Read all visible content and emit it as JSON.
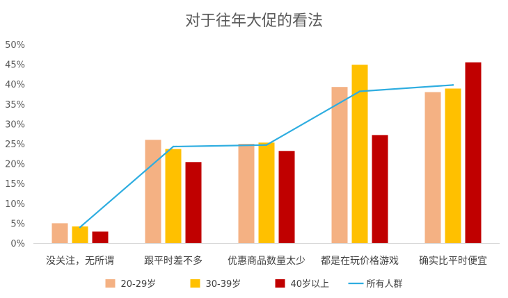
{
  "chart_data": {
    "type": "bar",
    "title": "对于往年大促的看法",
    "xlabel": "",
    "ylabel": "",
    "categories": [
      "没关注，无所谓",
      "跟平时差不多",
      "优惠商品数量太少",
      "都是在玩价格游戏",
      "确实比平时便宜"
    ],
    "y_ticks": [
      "0%",
      "5%",
      "10%",
      "15%",
      "20%",
      "25%",
      "30%",
      "35%",
      "40%",
      "45%",
      "50%"
    ],
    "ylim": [
      0,
      50
    ],
    "y_unit": "%",
    "grid": false,
    "legend_position": "bottom",
    "series": [
      {
        "name": "20-29岁",
        "type": "bar",
        "color": "#F4B183",
        "values": [
          5.0,
          26.0,
          25.0,
          39.3,
          38.0
        ]
      },
      {
        "name": "30-39岁",
        "type": "bar",
        "color": "#FFC000",
        "values": [
          4.2,
          23.7,
          25.3,
          44.9,
          38.9
        ]
      },
      {
        "name": "40岁以上",
        "type": "bar",
        "color": "#C00000",
        "values": [
          2.9,
          20.4,
          23.2,
          27.2,
          45.5
        ]
      },
      {
        "name": "所有人群",
        "type": "line",
        "color": "#2EADE0",
        "values": [
          4.0,
          24.3,
          24.7,
          38.2,
          39.8
        ]
      }
    ]
  }
}
